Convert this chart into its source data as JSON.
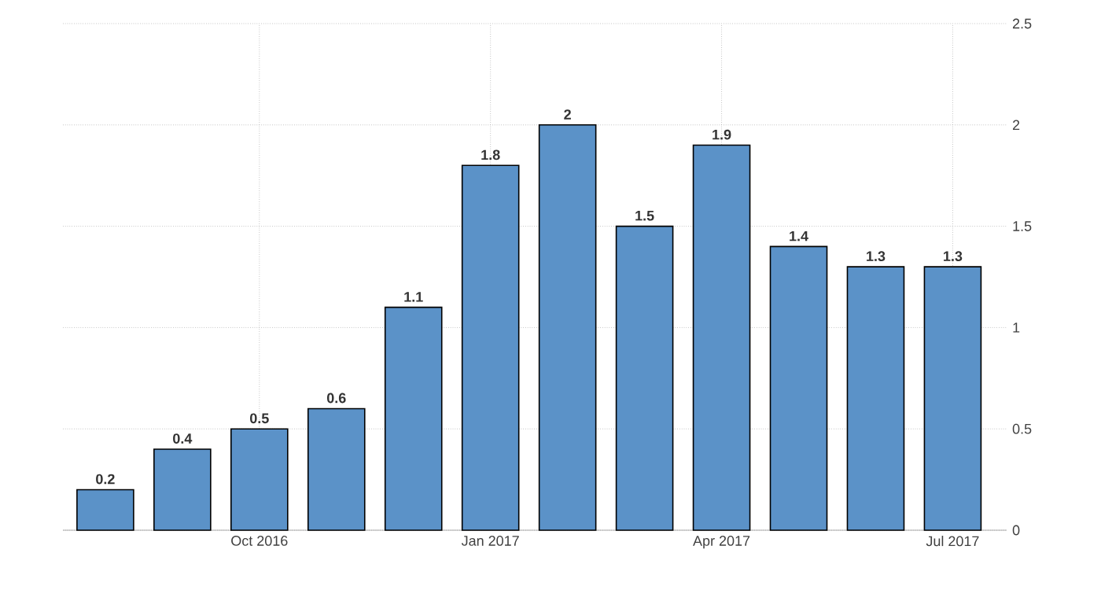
{
  "chart_data": {
    "type": "bar",
    "categories": [
      null,
      null,
      "Oct 2016",
      null,
      null,
      "Jan 2017",
      null,
      null,
      "Apr 2017",
      null,
      null,
      "Jul 2017"
    ],
    "values": [
      0.2,
      0.4,
      0.5,
      0.6,
      1.1,
      1.8,
      2,
      1.5,
      1.9,
      1.4,
      1.3,
      1.3
    ],
    "color": "#5b92c8",
    "ylim": [
      0,
      2.5
    ],
    "yticks": [
      0,
      0.5,
      1,
      1.5,
      2,
      2.5
    ],
    "grid": true,
    "data_labels": true
  }
}
